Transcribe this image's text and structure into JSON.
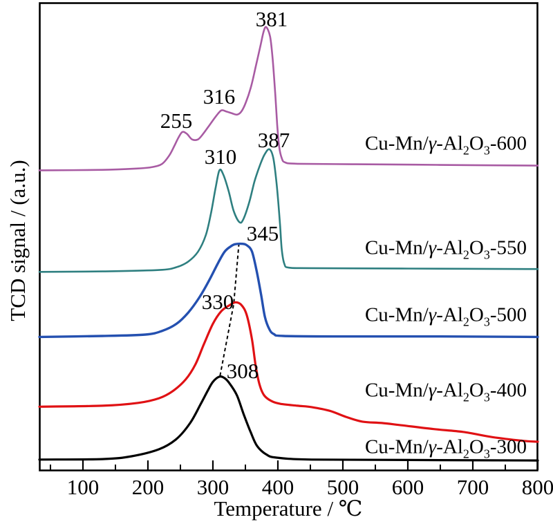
{
  "figure": {
    "background": "#ffffff",
    "frame_color": "#000000",
    "text_color": "#000000"
  },
  "chart_data": {
    "type": "line",
    "title": "",
    "xlabel": "Temperature / ℃",
    "ylabel": "TCD signal / (a.u.)",
    "x_range": [
      33,
      800
    ],
    "signal_range": [
      0,
      100
    ],
    "x_major_ticks": [
      100,
      200,
      300,
      400,
      500,
      600,
      700,
      800
    ],
    "x_minor_ticks": [
      50,
      150,
      250,
      350,
      450,
      550,
      650,
      750
    ],
    "grid": false,
    "legend_style": "inline-right-aligned-curve-labels",
    "series": [
      {
        "name": "Cu-Mn/γ-Al2O3-600",
        "label_parts": [
          {
            "t": "Cu-Mn/"
          },
          {
            "t": "γ",
            "i": true
          },
          {
            "t": "-Al"
          },
          {
            "t": "2",
            "sub": true
          },
          {
            "t": "O"
          },
          {
            "t": "3",
            "sub": true
          },
          {
            "t": "-600"
          }
        ],
        "color": "#a85ba3",
        "width": 2.6,
        "label_y_signal": 69.6,
        "labeled_peaks_c": [
          255,
          316,
          381
        ],
        "points": [
          [
            33,
            64.2
          ],
          [
            130,
            64.3
          ],
          [
            185,
            64.6
          ],
          [
            207,
            64.9
          ],
          [
            222,
            65.6
          ],
          [
            233,
            67.4
          ],
          [
            241,
            69.5
          ],
          [
            247,
            71.2
          ],
          [
            253,
            72.4
          ],
          [
            260,
            72.0
          ],
          [
            268,
            70.8
          ],
          [
            277,
            70.8
          ],
          [
            285,
            72.0
          ],
          [
            295,
            73.9
          ],
          [
            305,
            75.8
          ],
          [
            313,
            77.0
          ],
          [
            320,
            76.8
          ],
          [
            329,
            76.4
          ],
          [
            337,
            76.1
          ],
          [
            344,
            76.8
          ],
          [
            351,
            78.8
          ],
          [
            359,
            82.2
          ],
          [
            366,
            86.4
          ],
          [
            373,
            90.7
          ],
          [
            378,
            93.8
          ],
          [
            382,
            94.8
          ],
          [
            388,
            92.8
          ],
          [
            392,
            87.9
          ],
          [
            396,
            80.5
          ],
          [
            399,
            73.9
          ],
          [
            402,
            69.2
          ],
          [
            406,
            66.8
          ],
          [
            411,
            65.9
          ],
          [
            430,
            65.6
          ],
          [
            520,
            65.5
          ],
          [
            611,
            65.4
          ],
          [
            700,
            65.3
          ],
          [
            800,
            65.2
          ]
        ]
      },
      {
        "name": "Cu-Mn/γ-Al2O3-550",
        "label_parts": [
          {
            "t": "Cu-Mn/"
          },
          {
            "t": "γ",
            "i": true
          },
          {
            "t": "-Al"
          },
          {
            "t": "2",
            "sub": true
          },
          {
            "t": "O"
          },
          {
            "t": "3",
            "sub": true
          },
          {
            "t": "-550"
          }
        ],
        "color": "#2e7f80",
        "width": 2.6,
        "label_y_signal": 47.2,
        "labeled_peaks_c": [
          310,
          387
        ],
        "points": [
          [
            33,
            42.5
          ],
          [
            130,
            42.6
          ],
          [
            217,
            42.9
          ],
          [
            244,
            43.5
          ],
          [
            262,
            44.7
          ],
          [
            277,
            46.8
          ],
          [
            289,
            50.3
          ],
          [
            297,
            55.0
          ],
          [
            304,
            60.3
          ],
          [
            310,
            64.2
          ],
          [
            316,
            63.3
          ],
          [
            324,
            59.9
          ],
          [
            332,
            55.5
          ],
          [
            341,
            53.1
          ],
          [
            347,
            53.8
          ],
          [
            356,
            57.4
          ],
          [
            364,
            61.8
          ],
          [
            373,
            65.5
          ],
          [
            380,
            67.7
          ],
          [
            387,
            68.7
          ],
          [
            393,
            66.8
          ],
          [
            398,
            61.4
          ],
          [
            403,
            53.2
          ],
          [
            406,
            47.3
          ],
          [
            410,
            44.2
          ],
          [
            417,
            43.4
          ],
          [
            452,
            43.3
          ],
          [
            600,
            43.2
          ],
          [
            800,
            43.1
          ]
        ]
      },
      {
        "name": "Cu-Mn/γ-Al2O3-500",
        "label_parts": [
          {
            "t": "Cu-Mn/"
          },
          {
            "t": "γ",
            "i": true
          },
          {
            "t": "-Al"
          },
          {
            "t": "2",
            "sub": true
          },
          {
            "t": "O"
          },
          {
            "t": "3",
            "sub": true
          },
          {
            "t": "-500"
          }
        ],
        "color": "#2450b0",
        "width": 3.4,
        "label_y_signal": 33.0,
        "labeled_peaks_c": [
          345
        ],
        "points": [
          [
            33,
            28.6
          ],
          [
            130,
            28.8
          ],
          [
            196,
            29.1
          ],
          [
            222,
            29.9
          ],
          [
            244,
            31.4
          ],
          [
            262,
            33.8
          ],
          [
            279,
            37.0
          ],
          [
            294,
            40.6
          ],
          [
            308,
            44.4
          ],
          [
            318,
            46.8
          ],
          [
            327,
            47.9
          ],
          [
            334,
            48.4
          ],
          [
            345,
            48.5
          ],
          [
            352,
            48.2
          ],
          [
            360,
            46.9
          ],
          [
            367,
            42.9
          ],
          [
            374,
            37.8
          ],
          [
            380,
            32.9
          ],
          [
            387,
            30.2
          ],
          [
            394,
            29.2
          ],
          [
            409,
            28.8
          ],
          [
            500,
            28.7
          ],
          [
            650,
            28.7
          ],
          [
            800,
            28.6
          ]
        ]
      },
      {
        "name": "Cu-Mn/γ-Al2O3-400",
        "label_parts": [
          {
            "t": "Cu-Mn/"
          },
          {
            "t": "γ",
            "i": true
          },
          {
            "t": "-Al"
          },
          {
            "t": "2",
            "sub": true
          },
          {
            "t": "O"
          },
          {
            "t": "3",
            "sub": true
          },
          {
            "t": "-400"
          }
        ],
        "color": "#e01114",
        "width": 3.2,
        "label_y_signal": 16.8,
        "labeled_peaks_c": [
          330
        ],
        "points": [
          [
            33,
            13.7
          ],
          [
            130,
            13.9
          ],
          [
            185,
            14.5
          ],
          [
            217,
            15.5
          ],
          [
            238,
            17.0
          ],
          [
            258,
            19.5
          ],
          [
            273,
            22.7
          ],
          [
            286,
            27.0
          ],
          [
            300,
            31.4
          ],
          [
            313,
            34.1
          ],
          [
            326,
            35.4
          ],
          [
            335,
            36.0
          ],
          [
            344,
            35.4
          ],
          [
            352,
            33.3
          ],
          [
            360,
            28.2
          ],
          [
            366,
            22.3
          ],
          [
            372,
            18.3
          ],
          [
            379,
            16.1
          ],
          [
            390,
            14.9
          ],
          [
            404,
            14.3
          ],
          [
            430,
            13.9
          ],
          [
            452,
            13.6
          ],
          [
            480,
            12.8
          ],
          [
            505,
            11.5
          ],
          [
            530,
            10.5
          ],
          [
            560,
            10.2
          ],
          [
            592,
            9.7
          ],
          [
            640,
            8.9
          ],
          [
            685,
            8.3
          ],
          [
            730,
            7.2
          ],
          [
            777,
            6.4
          ],
          [
            800,
            6.2
          ]
        ]
      },
      {
        "name": "Cu-Mn/γ-Al2O3-300",
        "label_parts": [
          {
            "t": "Cu-Mn/"
          },
          {
            "t": "γ",
            "i": true
          },
          {
            "t": "-Al"
          },
          {
            "t": "2",
            "sub": true
          },
          {
            "t": "O"
          },
          {
            "t": "3",
            "sub": true
          },
          {
            "t": "-300"
          }
        ],
        "color": "#000000",
        "width": 3.2,
        "label_y_signal": 4.7,
        "labeled_peaks_c": [
          308
        ],
        "points": [
          [
            33,
            2.4
          ],
          [
            130,
            2.5
          ],
          [
            175,
            3.1
          ],
          [
            217,
            4.6
          ],
          [
            244,
            6.8
          ],
          [
            265,
            10.2
          ],
          [
            281,
            14.2
          ],
          [
            292,
            17.1
          ],
          [
            300,
            19.0
          ],
          [
            310,
            20.1
          ],
          [
            318,
            19.8
          ],
          [
            326,
            18.6
          ],
          [
            337,
            16.1
          ],
          [
            347,
            12.2
          ],
          [
            358,
            8.3
          ],
          [
            368,
            5.3
          ],
          [
            382,
            3.5
          ],
          [
            398,
            2.8
          ],
          [
            452,
            2.4
          ],
          [
            600,
            2.3
          ],
          [
            800,
            2.2
          ]
        ]
      }
    ],
    "trend_line": {
      "style": "dashed",
      "color": "#000000",
      "width": 2,
      "points": [
        [
          311,
          20.3
        ],
        [
          332,
          35.6
        ],
        [
          340,
          48.5
        ]
      ]
    },
    "annotations": [
      {
        "text": "255",
        "x": 244,
        "y": 74.8
      },
      {
        "text": "316",
        "x": 310,
        "y": 79.9
      },
      {
        "text": "381",
        "x": 390,
        "y": 96.5
      },
      {
        "text": "310",
        "x": 312,
        "y": 67.0
      },
      {
        "text": "387",
        "x": 394,
        "y": 70.6
      },
      {
        "text": "345",
        "x": 377,
        "y": 50.7
      },
      {
        "text": "330",
        "x": 307,
        "y": 36.1
      },
      {
        "text": "308",
        "x": 346,
        "y": 21.2
      }
    ]
  }
}
